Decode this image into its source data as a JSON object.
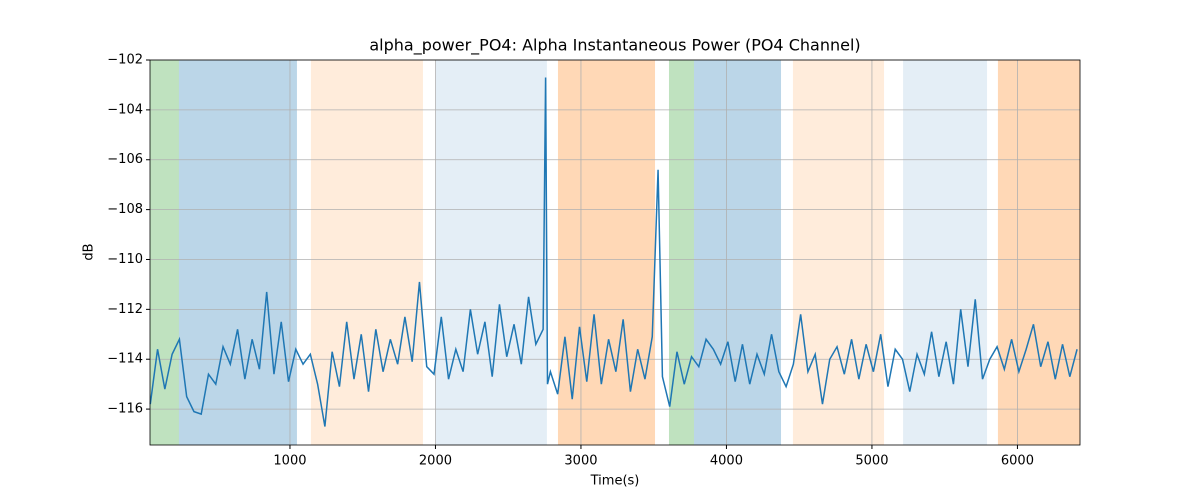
{
  "chart_data": {
    "type": "line",
    "title": "alpha_power_PO4: Alpha Instantaneous Power (PO4 Channel)",
    "x_label": "Time(s)",
    "y_label": "dB",
    "xlim": [
      38,
      6430
    ],
    "ylim": [
      -117.44,
      -102
    ],
    "xticks": [
      1000,
      2000,
      3000,
      4000,
      5000,
      6000
    ],
    "yticks": [
      {
        "value": -116,
        "label": "−116"
      },
      {
        "value": -114,
        "label": "−114"
      },
      {
        "value": -112,
        "label": "−112"
      },
      {
        "value": -110,
        "label": "−110"
      },
      {
        "value": -108,
        "label": "−108"
      },
      {
        "value": -106,
        "label": "−106"
      },
      {
        "value": -104,
        "label": "−104"
      },
      {
        "value": -102,
        "label": "−102"
      }
    ],
    "grid": true,
    "spans": [
      {
        "start": 38,
        "end": 237,
        "color": "#2ca02c",
        "opacity": 0.3
      },
      {
        "start": 237,
        "end": 1048,
        "color": "#1f77b4",
        "opacity": 0.3
      },
      {
        "start": 1144,
        "end": 1914,
        "color": "#ff7f0e",
        "opacity": 0.15
      },
      {
        "start": 2003,
        "end": 2766,
        "color": "#1f77b4",
        "opacity": 0.12
      },
      {
        "start": 2842,
        "end": 3509,
        "color": "#ff7f0e",
        "opacity": 0.3
      },
      {
        "start": 3605,
        "end": 3777,
        "color": "#2ca02c",
        "opacity": 0.3
      },
      {
        "start": 3777,
        "end": 4375,
        "color": "#1f77b4",
        "opacity": 0.3
      },
      {
        "start": 4457,
        "end": 5083,
        "color": "#ff7f0e",
        "opacity": 0.15
      },
      {
        "start": 5214,
        "end": 5791,
        "color": "#1f77b4",
        "opacity": 0.12
      },
      {
        "start": 5866,
        "end": 6430,
        "color": "#ff7f0e",
        "opacity": 0.3
      }
    ],
    "x": [
      40,
      90,
      140,
      190,
      240,
      290,
      340,
      390,
      440,
      490,
      540,
      590,
      640,
      690,
      740,
      790,
      840,
      890,
      940,
      990,
      1040,
      1090,
      1140,
      1190,
      1240,
      1290,
      1340,
      1390,
      1440,
      1490,
      1540,
      1590,
      1640,
      1690,
      1740,
      1790,
      1840,
      1890,
      1940,
      1990,
      2040,
      2090,
      2140,
      2190,
      2240,
      2290,
      2340,
      2390,
      2440,
      2490,
      2540,
      2590,
      2640,
      2690,
      2740,
      2757,
      2770,
      2790,
      2840,
      2890,
      2940,
      2990,
      3040,
      3090,
      3140,
      3190,
      3240,
      3290,
      3340,
      3390,
      3440,
      3490,
      3530,
      3560,
      3610,
      3660,
      3710,
      3760,
      3810,
      3860,
      3910,
      3960,
      4010,
      4060,
      4110,
      4160,
      4210,
      4260,
      4310,
      4360,
      4410,
      4460,
      4510,
      4560,
      4610,
      4660,
      4710,
      4760,
      4810,
      4860,
      4910,
      4960,
      5010,
      5060,
      5110,
      5160,
      5210,
      5260,
      5310,
      5360,
      5410,
      5460,
      5510,
      5560,
      5610,
      5660,
      5710,
      5760,
      5810,
      5860,
      5910,
      5960,
      6010,
      6060,
      6110,
      6160,
      6210,
      6260,
      6310,
      6360,
      6410
    ],
    "series": [
      {
        "color": "#1f77b4",
        "values": [
          -115.8,
          -113.6,
          -115.2,
          -113.8,
          -113.2,
          -115.5,
          -116.1,
          -116.2,
          -114.6,
          -115.0,
          -113.5,
          -114.2,
          -112.8,
          -114.8,
          -113.2,
          -114.4,
          -111.3,
          -114.6,
          -112.5,
          -114.9,
          -113.6,
          -114.2,
          -113.8,
          -115.0,
          -116.7,
          -113.7,
          -115.1,
          -112.5,
          -114.8,
          -113.0,
          -115.3,
          -112.8,
          -114.5,
          -113.2,
          -114.2,
          -112.3,
          -114.1,
          -110.9,
          -114.3,
          -114.6,
          -112.3,
          -114.8,
          -113.6,
          -114.5,
          -112.0,
          -113.8,
          -112.5,
          -114.7,
          -111.8,
          -113.9,
          -112.6,
          -114.2,
          -111.5,
          -113.4,
          -112.8,
          -102.7,
          -115.0,
          -114.5,
          -115.4,
          -113.1,
          -115.6,
          -112.7,
          -114.9,
          -112.2,
          -115.0,
          -113.2,
          -114.5,
          -112.4,
          -115.3,
          -113.6,
          -114.8,
          -113.1,
          -106.4,
          -114.7,
          -115.9,
          -113.7,
          -115.0,
          -113.9,
          -114.3,
          -113.2,
          -113.6,
          -114.2,
          -113.3,
          -114.9,
          -113.4,
          -115.0,
          -113.8,
          -114.6,
          -113.0,
          -114.5,
          -115.1,
          -114.2,
          -112.2,
          -114.5,
          -113.8,
          -115.8,
          -114.0,
          -113.5,
          -114.6,
          -113.2,
          -114.8,
          -113.4,
          -114.5,
          -113.0,
          -115.1,
          -113.6,
          -114.0,
          -115.3,
          -113.8,
          -114.6,
          -112.9,
          -114.7,
          -113.3,
          -115.0,
          -112.0,
          -114.3,
          -111.6,
          -114.8,
          -114.0,
          -113.5,
          -114.4,
          -113.2,
          -114.5,
          -113.6,
          -112.6,
          -114.3,
          -113.3,
          -114.8,
          -113.4,
          -114.7,
          -113.6
        ]
      }
    ]
  }
}
